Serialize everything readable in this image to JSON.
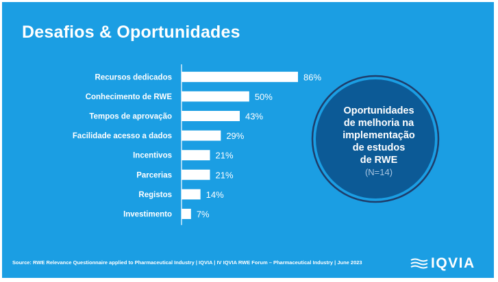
{
  "header": {
    "title": "Desafios & Oportunidades"
  },
  "chart_data": {
    "type": "bar",
    "orientation": "horizontal",
    "categories": [
      "Recursos dedicados",
      "Conhecimento de RWE",
      "Tempos de aprovação",
      "Facilidade acesso a dados",
      "Incentivos",
      "Parcerias",
      "Registos",
      "Investimento"
    ],
    "values": [
      86,
      50,
      43,
      29,
      21,
      21,
      14,
      7
    ],
    "value_labels": [
      "86%",
      "50%",
      "43%",
      "29%",
      "21%",
      "21%",
      "14%",
      "7%"
    ],
    "value_unit": "%",
    "xlim": [
      0,
      100
    ],
    "grid": false,
    "bar_color": "#ffffff",
    "axis_color": "#ffffff"
  },
  "callout": {
    "lines": [
      "Oportunidades",
      "de melhoria na",
      "implementação",
      "de estudos",
      "de RWE"
    ],
    "note": "(N=14)",
    "fill_color": "#0c5a96",
    "ring_color": "#1e3d6b"
  },
  "footer": {
    "source": "Source: RWE Relevance Questionnaire applied to Pharmaceutical Industry  |   IQVIA | IV IQVIA RWE Forum – Pharmaceutical Industry | June 2023"
  },
  "brand": {
    "logo_text": "IQVIA",
    "logo_icon": "iqvia-waves-icon"
  },
  "colors": {
    "background": "#1b9ee3",
    "text": "#ffffff"
  }
}
